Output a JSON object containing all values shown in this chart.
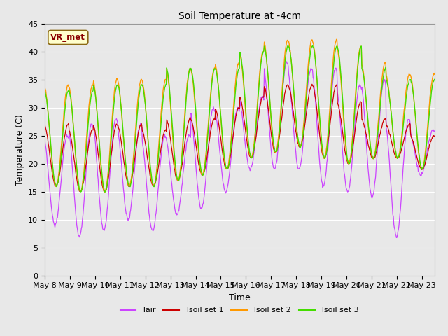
{
  "title": "Soil Temperature at -4cm",
  "xlabel": "Time",
  "ylabel": "Temperature (C)",
  "ylim": [
    0,
    45
  ],
  "background_color": "#e8e8e8",
  "plot_bg_color": "#e8e8e8",
  "colors": {
    "Tair": "#cc44ff",
    "Tsoil1": "#cc0000",
    "Tsoil2": "#ff9900",
    "Tsoil3": "#44dd00"
  },
  "legend_labels": [
    "Tair",
    "Tsoil set 1",
    "Tsoil set 2",
    "Tsoil set 3"
  ],
  "x_tick_labels": [
    "May 8",
    "May 9",
    "May 10",
    "May 11",
    "May 12",
    "May 13",
    "May 14",
    "May 15",
    "May 16",
    "May 17",
    "May 18",
    "May 19",
    "May 20",
    "May 21",
    "May 22",
    "May 23"
  ],
  "annotation_text": "VR_met",
  "annotation_color": "#8b0000",
  "annotation_bg": "#ffffcc",
  "annotation_border": "#8b6914"
}
